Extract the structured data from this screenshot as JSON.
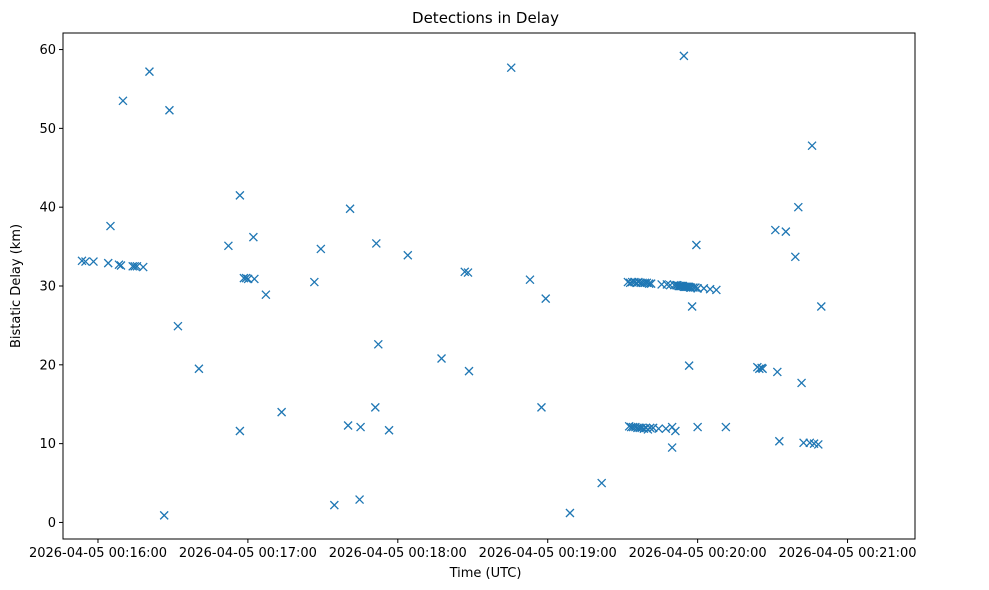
{
  "chart_data": {
    "type": "scatter",
    "title": "Detections in Delay",
    "xlabel": "Time (UTC)",
    "ylabel": "Bistatic Delay (km)",
    "marker": "x",
    "marker_color": "#1f77b4",
    "x_unit": "seconds after 2026-04-05 00:15:00 UTC",
    "xlim": [
      46,
      387
    ],
    "ylim": [
      -2.1,
      62.1
    ],
    "x_ticks": [
      {
        "value": 60,
        "label": "2026-04-05 00:16:00"
      },
      {
        "value": 120,
        "label": "2026-04-05 00:17:00"
      },
      {
        "value": 180,
        "label": "2026-04-05 00:18:00"
      },
      {
        "value": 240,
        "label": "2026-04-05 00:19:00"
      },
      {
        "value": 300,
        "label": "2026-04-05 00:20:00"
      },
      {
        "value": 360,
        "label": "2026-04-05 00:21:00"
      }
    ],
    "y_ticks": [
      {
        "value": 0,
        "label": "0"
      },
      {
        "value": 10,
        "label": "10"
      },
      {
        "value": 20,
        "label": "20"
      },
      {
        "value": 30,
        "label": "30"
      },
      {
        "value": 40,
        "label": "40"
      },
      {
        "value": 50,
        "label": "50"
      },
      {
        "value": 60,
        "label": "60"
      }
    ],
    "points": [
      [
        53.6,
        33.2
      ],
      [
        55.0,
        33.1
      ],
      [
        58.2,
        33.1
      ],
      [
        64.1,
        32.9
      ],
      [
        65.0,
        37.6
      ],
      [
        68.4,
        32.7
      ],
      [
        69.2,
        32.6
      ],
      [
        70.0,
        53.5
      ],
      [
        73.9,
        32.5
      ],
      [
        74.7,
        32.5
      ],
      [
        75.6,
        32.5
      ],
      [
        78.1,
        32.4
      ],
      [
        80.6,
        57.2
      ],
      [
        86.5,
        0.9
      ],
      [
        88.6,
        52.3
      ],
      [
        92.0,
        24.9
      ],
      [
        100.4,
        19.5
      ],
      [
        112.2,
        35.1
      ],
      [
        116.8,
        41.5
      ],
      [
        116.8,
        11.6
      ],
      [
        118.4,
        31.0
      ],
      [
        119.3,
        31.0
      ],
      [
        120.1,
        30.9
      ],
      [
        122.2,
        36.2
      ],
      [
        122.6,
        30.9
      ],
      [
        127.2,
        28.9
      ],
      [
        133.5,
        14.0
      ],
      [
        146.6,
        30.5
      ],
      [
        149.2,
        34.7
      ],
      [
        154.6,
        2.2
      ],
      [
        160.1,
        12.3
      ],
      [
        160.9,
        39.8
      ],
      [
        164.7,
        2.9
      ],
      [
        165.1,
        12.1
      ],
      [
        171.0,
        14.6
      ],
      [
        171.4,
        35.4
      ],
      [
        172.2,
        22.6
      ],
      [
        176.5,
        11.7
      ],
      [
        184.0,
        33.9
      ],
      [
        197.5,
        20.8
      ],
      [
        206.8,
        31.8
      ],
      [
        208.1,
        31.7
      ],
      [
        208.5,
        19.2
      ],
      [
        225.4,
        57.7
      ],
      [
        232.9,
        30.8
      ],
      [
        237.5,
        14.6
      ],
      [
        239.2,
        28.4
      ],
      [
        248.9,
        1.2
      ],
      [
        261.6,
        5.0
      ],
      [
        272.1,
        30.5
      ],
      [
        272.6,
        12.2
      ],
      [
        273.0,
        30.4
      ],
      [
        273.4,
        12.1
      ],
      [
        273.8,
        30.5
      ],
      [
        274.2,
        12.1
      ],
      [
        274.7,
        30.5
      ],
      [
        275.1,
        12.1
      ],
      [
        275.5,
        30.4
      ],
      [
        275.9,
        12.0
      ],
      [
        276.3,
        30.5
      ],
      [
        276.8,
        12.0
      ],
      [
        277.2,
        30.4
      ],
      [
        277.6,
        12.0
      ],
      [
        278.0,
        30.4
      ],
      [
        278.5,
        11.9
      ],
      [
        278.9,
        30.4
      ],
      [
        279.3,
        12.0
      ],
      [
        279.7,
        30.4
      ],
      [
        280.1,
        11.8
      ],
      [
        280.6,
        30.3
      ],
      [
        281.0,
        12.0
      ],
      [
        281.4,
        30.3
      ],
      [
        282.2,
        12.0
      ],
      [
        284.4,
        11.9
      ],
      [
        285.6,
        30.2
      ],
      [
        287.3,
        11.9
      ],
      [
        287.7,
        30.2
      ],
      [
        289.0,
        30.1
      ],
      [
        289.8,
        12.1
      ],
      [
        289.8,
        9.5
      ],
      [
        290.7,
        30.1
      ],
      [
        291.1,
        11.6
      ],
      [
        291.5,
        30.1
      ],
      [
        291.9,
        30.1
      ],
      [
        292.4,
        30.0
      ],
      [
        292.8,
        30.0
      ],
      [
        293.2,
        30.0
      ],
      [
        293.6,
        30.0
      ],
      [
        294.1,
        30.0
      ],
      [
        294.5,
        29.9
      ],
      [
        294.5,
        59.2
      ],
      [
        294.9,
        29.9
      ],
      [
        295.3,
        29.9
      ],
      [
        295.7,
        29.9
      ],
      [
        296.2,
        29.9
      ],
      [
        296.6,
        29.9
      ],
      [
        296.6,
        19.9
      ],
      [
        297.0,
        29.8
      ],
      [
        297.4,
        29.8
      ],
      [
        297.8,
        27.4
      ],
      [
        298.3,
        29.8
      ],
      [
        299.1,
        29.8
      ],
      [
        299.5,
        35.2
      ],
      [
        300.0,
        29.7
      ],
      [
        300.0,
        12.1
      ],
      [
        302.5,
        29.7
      ],
      [
        305.0,
        29.6
      ],
      [
        307.5,
        29.5
      ],
      [
        311.3,
        12.1
      ],
      [
        323.9,
        19.7
      ],
      [
        324.7,
        19.5
      ],
      [
        325.6,
        19.6
      ],
      [
        326.0,
        19.5
      ],
      [
        331.1,
        37.1
      ],
      [
        331.9,
        19.1
      ],
      [
        332.7,
        10.3
      ],
      [
        335.3,
        36.9
      ],
      [
        339.1,
        33.7
      ],
      [
        340.3,
        40.0
      ],
      [
        341.6,
        17.7
      ],
      [
        342.4,
        10.1
      ],
      [
        344.9,
        10.1
      ],
      [
        345.8,
        47.8
      ],
      [
        346.6,
        10.0
      ],
      [
        348.3,
        9.9
      ],
      [
        349.5,
        27.4
      ]
    ]
  }
}
